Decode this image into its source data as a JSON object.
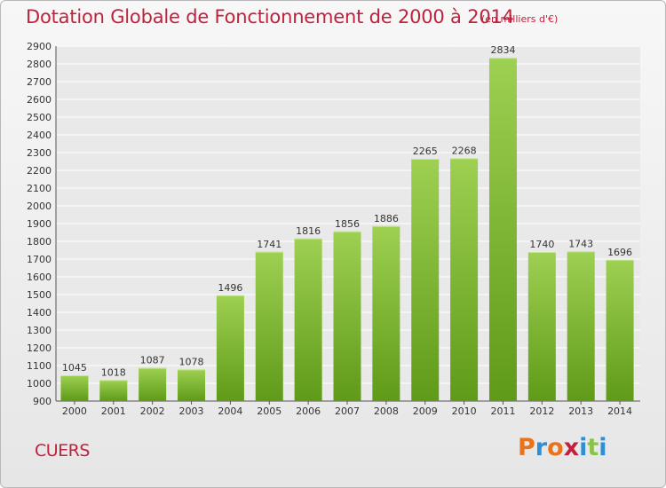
{
  "header": {
    "title": "Dotation Globale de Fonctionnement de 2000 à 2014",
    "unit": "(en milliers d'€)"
  },
  "footer": {
    "commune": "CUERS",
    "logo_text": "Proxiti"
  },
  "colors": {
    "title": "#c0213d",
    "bar_top": "#9ed052",
    "bar_bottom": "#5f9a18",
    "grid": "#ffffff",
    "logo_letters": [
      "#e8731a",
      "#2e8fd6",
      "#e8731a",
      "#c0213d",
      "#2e8fd6",
      "#8bc34a",
      "#2e8fd6"
    ]
  },
  "chart_data": {
    "type": "bar",
    "categories": [
      "2000",
      "2001",
      "2002",
      "2003",
      "2004",
      "2005",
      "2006",
      "2007",
      "2008",
      "2009",
      "2010",
      "2011",
      "2012",
      "2013",
      "2014"
    ],
    "values": [
      1045,
      1018,
      1087,
      1078,
      1496,
      1741,
      1816,
      1856,
      1886,
      2265,
      2268,
      2834,
      1740,
      1743,
      1696
    ],
    "title": "Dotation Globale de Fonctionnement de 2000 à 2014",
    "ylim": [
      900,
      2900
    ],
    "yticks": [
      900,
      1000,
      1100,
      1200,
      1300,
      1400,
      1500,
      1600,
      1700,
      1800,
      1900,
      2000,
      2100,
      2200,
      2300,
      2400,
      2500,
      2600,
      2700,
      2800,
      2900
    ],
    "grid": true,
    "data_labels": true
  }
}
